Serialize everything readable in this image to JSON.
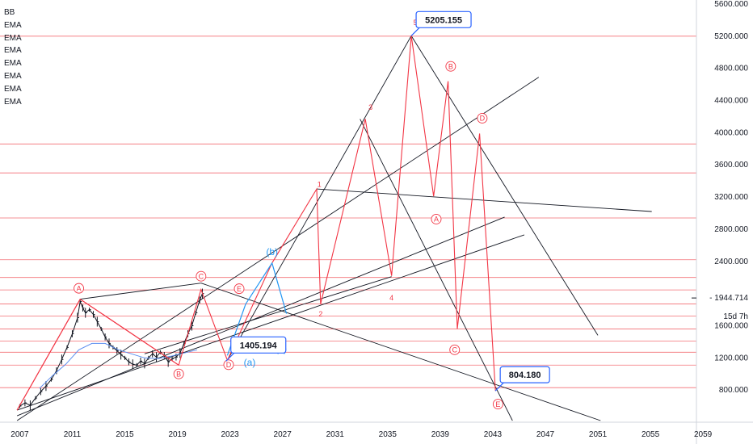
{
  "legend": {
    "items": [
      "BB",
      "EMA",
      "EMA",
      "EMA",
      "EMA",
      "EMA",
      "EMA",
      "EMA"
    ]
  },
  "price_scale": {
    "ticks": [
      "5600.000",
      "5200.000",
      "4800.000",
      "4400.000",
      "4000.000",
      "3600.000",
      "3200.000",
      "2800.000",
      "2400.000",
      "1600.000",
      "1200.000",
      "800.000"
    ],
    "last_price": "1944.714",
    "countdown": "15d 7h"
  },
  "time_scale": {
    "ticks": [
      "2007",
      "2011",
      "2015",
      "2019",
      "2023",
      "2027",
      "2031",
      "2035",
      "2039",
      "2043",
      "2047",
      "2051",
      "2055",
      "2059"
    ]
  },
  "colors": {
    "wave": "#f23645",
    "trend": "#131722",
    "corrective": "#2196f3",
    "level": "#f2545b",
    "callout": "#2962ff"
  },
  "callouts": [
    {
      "text": "5205.155",
      "x": 2036.8,
      "y": 5205
    },
    {
      "text": "1405.194",
      "x": 2022.7,
      "y": 1160
    },
    {
      "text": "804.180",
      "x": 2043.2,
      "y": 790
    }
  ],
  "chart_data": {
    "type": "line",
    "x_range": [
      2005.5,
      2058.5
    ],
    "y_range": [
      400,
      5650
    ],
    "horizontal_levels": [
      5200,
      3860,
      3500,
      2940,
      2420,
      2200,
      2045,
      1870,
      1720,
      1560,
      1410,
      1270,
      1110,
      830
    ],
    "wave_labels": [
      {
        "text": "A",
        "x": 2011.5,
        "y": 2065,
        "style": "circle"
      },
      {
        "text": "B",
        "x": 2019.1,
        "y": 1000,
        "style": "circle"
      },
      {
        "text": "C",
        "x": 2020.8,
        "y": 2215,
        "style": "circle"
      },
      {
        "text": "D",
        "x": 2022.9,
        "y": 1115,
        "style": "circle"
      },
      {
        "text": "E",
        "x": 2023.7,
        "y": 2060,
        "style": "circle"
      },
      {
        "text": "(a)",
        "x": 2024.5,
        "y": 1145,
        "style": "blue"
      },
      {
        "text": "(b)",
        "x": 2026.2,
        "y": 2520,
        "style": "blue"
      },
      {
        "text": "(c)",
        "x": 2026.9,
        "y": 1315,
        "style": "blue"
      },
      {
        "text": "1",
        "x": 2029.8,
        "y": 3355,
        "style": "plain"
      },
      {
        "text": "2",
        "x": 2029.9,
        "y": 1745,
        "style": "plain"
      },
      {
        "text": "3",
        "x": 2033.7,
        "y": 4315,
        "style": "plain"
      },
      {
        "text": "4",
        "x": 2035.3,
        "y": 1945,
        "style": "plain"
      },
      {
        "text": "5",
        "x": 2037.1,
        "y": 5370,
        "style": "plain"
      },
      {
        "text": "A",
        "x": 2038.7,
        "y": 2925,
        "style": "circle"
      },
      {
        "text": "B",
        "x": 2039.8,
        "y": 4825,
        "style": "circle"
      },
      {
        "text": "C",
        "x": 2040.1,
        "y": 1300,
        "style": "circle"
      },
      {
        "text": "D",
        "x": 2042.2,
        "y": 4180,
        "style": "circle"
      },
      {
        "text": "E",
        "x": 2043.4,
        "y": 625,
        "style": "circle"
      }
    ],
    "series": [
      {
        "name": "",
        "kind": "price",
        "x": [
          2007.0,
          2007.4,
          2007.8,
          2008.2,
          2008.6,
          2009.0,
          2009.4,
          2009.8,
          2010.2,
          2010.6,
          2011.0,
          2011.4,
          2011.6,
          2011.8,
          2012.0,
          2012.3,
          2012.6,
          2012.9,
          2013.2,
          2013.5,
          2013.8,
          2014.1,
          2014.4,
          2014.7,
          2015.0,
          2015.3,
          2015.6,
          2015.9,
          2016.2,
          2016.5,
          2016.8,
          2017.1,
          2017.4,
          2017.7,
          2018.0,
          2018.3,
          2018.6,
          2018.9,
          2019.2,
          2019.5,
          2019.8,
          2020.1,
          2020.4,
          2020.7,
          2020.9
        ],
        "y": [
          600,
          640,
          610,
          700,
          780,
          850,
          930,
          1040,
          1180,
          1330,
          1500,
          1700,
          1900,
          1820,
          1760,
          1800,
          1740,
          1650,
          1560,
          1460,
          1380,
          1330,
          1290,
          1240,
          1200,
          1150,
          1120,
          1110,
          1160,
          1130,
          1200,
          1250,
          1210,
          1270,
          1230,
          1150,
          1190,
          1210,
          1260,
          1380,
          1500,
          1600,
          1760,
          1920,
          2000
        ]
      },
      {
        "name": "",
        "kind": "ema",
        "x": [
          2008.5,
          2009.5,
          2010.5,
          2011.5,
          2012.5,
          2013.5,
          2014.5,
          2015.5,
          2016.5,
          2017.5,
          2018.5,
          2019.5,
          2020.5
        ],
        "y": [
          820,
          980,
          1120,
          1300,
          1380,
          1380,
          1300,
          1250,
          1200,
          1190,
          1220,
          1260,
          1300
        ]
      },
      {
        "name": "",
        "kind": "wave",
        "x": [
          2006.8,
          2011.6,
          2019.1,
          2020.8,
          2022.8,
          2026.2,
          2029.6,
          2029.9,
          2033.3,
          2035.3,
          2036.8,
          2038.5,
          2039.6,
          2040.3,
          2042.0,
          2043.2
        ],
        "y": [
          550,
          1930,
          1110,
          2050,
          1170,
          2380,
          3300,
          1870,
          4170,
          2220,
          5205,
          3210,
          4640,
          1560,
          3990,
          790
        ]
      },
      {
        "name": "",
        "kind": "wave",
        "x": [
          2006.8,
          2011.6,
          2019.1
        ],
        "y": [
          550,
          1930,
          1110
        ]
      },
      {
        "name": "",
        "kind": "corrective",
        "x": [
          2022.8,
          2024.2,
          2026.2,
          2027.3
        ],
        "y": [
          1230,
          1870,
          2380,
          1750
        ]
      }
    ],
    "trendlines": [
      {
        "x1": 2011.6,
        "y1": 1930,
        "x2": 2020.8,
        "y2": 2130
      },
      {
        "x1": 2020.8,
        "y1": 2130,
        "x2": 2051.2,
        "y2": 420
      },
      {
        "x1": 2006.8,
        "y1": 550,
        "x2": 2045.4,
        "y2": 2730
      },
      {
        "x1": 2006.8,
        "y1": 480,
        "x2": 2043.9,
        "y2": 2950
      },
      {
        "x1": 2006.8,
        "y1": 420,
        "x2": 2046.5,
        "y2": 4690
      },
      {
        "x1": 2016.5,
        "y1": 1250,
        "x2": 2035.3,
        "y2": 2210
      },
      {
        "x1": 2022.8,
        "y1": 1170,
        "x2": 2036.8,
        "y2": 5205
      },
      {
        "x1": 2036.8,
        "y1": 5205,
        "x2": 2051.0,
        "y2": 1480
      },
      {
        "x1": 2029.6,
        "y1": 3300,
        "x2": 2055.1,
        "y2": 3020
      },
      {
        "x1": 2032.9,
        "y1": 4170,
        "x2": 2044.5,
        "y2": 420
      }
    ]
  }
}
